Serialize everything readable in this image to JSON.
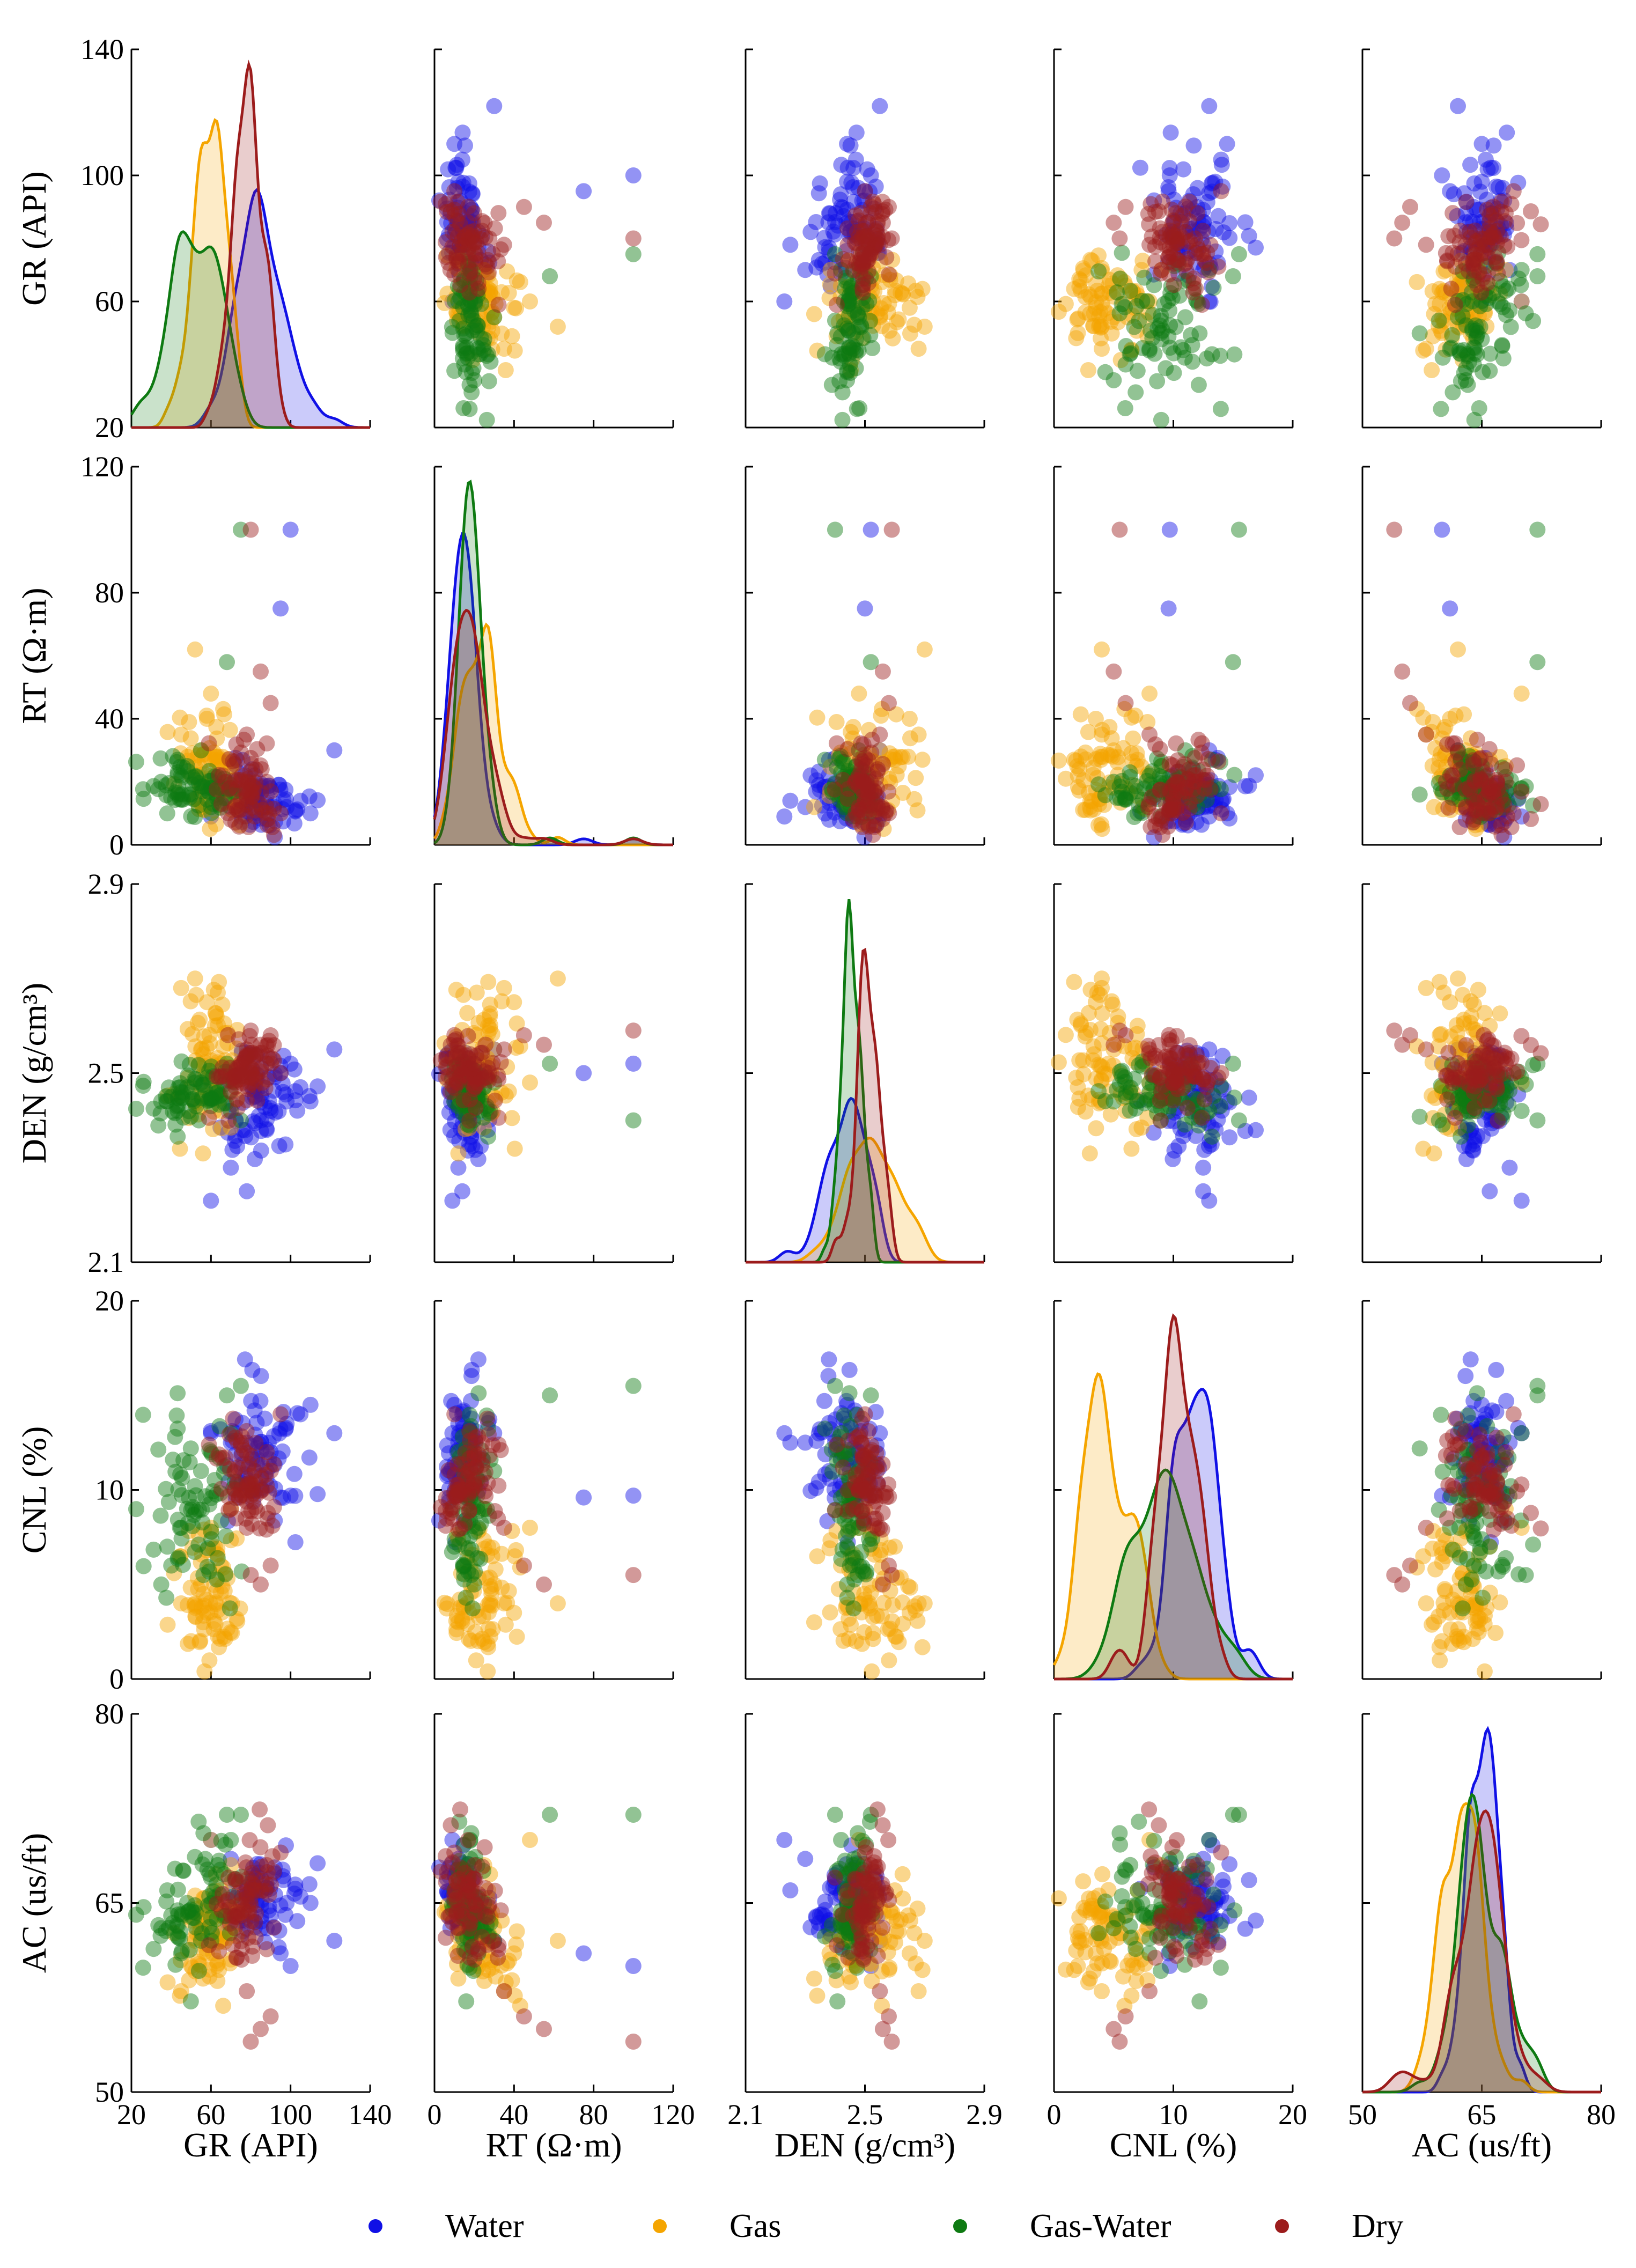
{
  "chart_data": {
    "type": "scatter",
    "subtype": "pairplot",
    "grid": false,
    "legend_position": "bottom",
    "diagonal": "kde",
    "variables": [
      {
        "key": "GR",
        "label": "GR (API)",
        "range": [
          20,
          140
        ],
        "ticks": [
          "20",
          "60",
          "100",
          "140"
        ],
        "xticks": [
          "20",
          "60",
          "100",
          "140"
        ]
      },
      {
        "key": "RT",
        "label": "RT (Ω·m)",
        "range": [
          0,
          120
        ],
        "ticks": [
          "0",
          "40",
          "80",
          "120"
        ],
        "xticks": [
          "0",
          "40",
          "80",
          "120"
        ]
      },
      {
        "key": "DEN",
        "label": "DEN (g/cm³)",
        "range": [
          2.1,
          2.9
        ],
        "ticks": [
          "2.1",
          "2.5",
          "2.9"
        ],
        "xticks": [
          "2.1",
          "2.5",
          "2.9"
        ]
      },
      {
        "key": "CNL",
        "label": "CNL (%)",
        "range": [
          0,
          20
        ],
        "ticks": [
          "0",
          "10",
          "20"
        ],
        "xticks": [
          "0",
          "10",
          "20"
        ]
      },
      {
        "key": "AC",
        "label": "AC (us/ft)",
        "range": [
          50,
          80
        ],
        "ticks": [
          "50",
          "65",
          "80"
        ],
        "xticks": [
          "50",
          "65",
          "80"
        ]
      }
    ],
    "series": [
      {
        "name": "Water",
        "color": "#1010e6",
        "center": {
          "GR": 85,
          "RT": 15,
          "DEN": 2.45,
          "CNL": 12,
          "AC": 65
        },
        "spread": {
          "GR": 12,
          "RT": 5,
          "DEN": 0.06,
          "CNL": 2,
          "AC": 1.8
        },
        "samples": [
          [
            98,
            12,
            2.44,
            13.5,
            65
          ],
          [
            105,
            14,
            2.47,
            14,
            65.5
          ],
          [
            110,
            10,
            2.44,
            14.5,
            65
          ],
          [
            90,
            18,
            2.42,
            12,
            64
          ],
          [
            82,
            16,
            2.45,
            11,
            63.5
          ],
          [
            122,
            30,
            2.55,
            13,
            62
          ],
          [
            100,
            100,
            2.52,
            9.7,
            60
          ],
          [
            78,
            14,
            2.25,
            12.5,
            66
          ],
          [
            60,
            9,
            2.23,
            13,
            70
          ],
          [
            70,
            12,
            2.3,
            12.5,
            68.5
          ],
          [
            95,
            75,
            2.5,
            9.6,
            61
          ],
          [
            88,
            8,
            2.38,
            11,
            63
          ]
        ]
      },
      {
        "name": "Gas",
        "color": "#f5a500",
        "center": {
          "GR": 58,
          "RT": 24,
          "DEN": 2.5,
          "CNL": 5,
          "AC": 62
        },
        "spread": {
          "GR": 8,
          "RT": 9,
          "DEN": 0.09,
          "CNL": 2,
          "AC": 2.2
        },
        "samples": [
          [
            52,
            62,
            2.7,
            4,
            62
          ],
          [
            58,
            40,
            2.65,
            3.5,
            61
          ],
          [
            55,
            30,
            2.55,
            5,
            63
          ],
          [
            50,
            22,
            2.47,
            2,
            60
          ],
          [
            65,
            18,
            2.42,
            6,
            64
          ],
          [
            60,
            48,
            2.48,
            8,
            70
          ],
          [
            45,
            35,
            2.68,
            4,
            58
          ],
          [
            70,
            25,
            2.5,
            9,
            68
          ],
          [
            56,
            12,
            2.33,
            3,
            59
          ],
          [
            62,
            27,
            2.6,
            7,
            66
          ]
        ]
      },
      {
        "name": "Gas-Water",
        "color": "#0e7a12",
        "center": {
          "GR": 52,
          "RT": 18,
          "DEN": 2.45,
          "CNL": 9,
          "AC": 64.5
        },
        "spread": {
          "GR": 10,
          "RT": 5,
          "DEN": 0.04,
          "CNL": 2.6,
          "AC": 2.5
        },
        "samples": [
          [
            40,
            15,
            2.45,
            6,
            64
          ],
          [
            35,
            20,
            2.44,
            5,
            63
          ],
          [
            48,
            25,
            2.47,
            9,
            65
          ],
          [
            60,
            12,
            2.43,
            12,
            67
          ],
          [
            68,
            58,
            2.52,
            15,
            72
          ],
          [
            75,
            100,
            2.4,
            15.5,
            72
          ],
          [
            55,
            30,
            2.48,
            11,
            62
          ],
          [
            45,
            22,
            2.46,
            8,
            61
          ],
          [
            70,
            18,
            2.42,
            13,
            70
          ],
          [
            38,
            10,
            2.44,
            7,
            66
          ]
        ]
      },
      {
        "name": "Dry",
        "color": "#9c1c1c",
        "center": {
          "GR": 78,
          "RT": 18,
          "DEN": 2.5,
          "CNL": 10.5,
          "AC": 65
        },
        "spread": {
          "GR": 7,
          "RT": 8,
          "DEN": 0.035,
          "CNL": 1.6,
          "AC": 2.2
        },
        "samples": [
          [
            82,
            18,
            2.54,
            11,
            66
          ],
          [
            75,
            14,
            2.5,
            10,
            64
          ],
          [
            90,
            45,
            2.58,
            6,
            56
          ],
          [
            85,
            55,
            2.56,
            5,
            55
          ],
          [
            80,
            100,
            2.59,
            5.5,
            54
          ],
          [
            70,
            8,
            2.46,
            9,
            64
          ],
          [
            88,
            20,
            2.52,
            12,
            68
          ],
          [
            72,
            12,
            2.48,
            10,
            63
          ],
          [
            78,
            35,
            2.55,
            8,
            58
          ],
          [
            95,
            10,
            2.5,
            14,
            69
          ]
        ]
      }
    ],
    "legend": [
      "Water",
      "Gas",
      "Gas-Water",
      "Dry"
    ]
  }
}
